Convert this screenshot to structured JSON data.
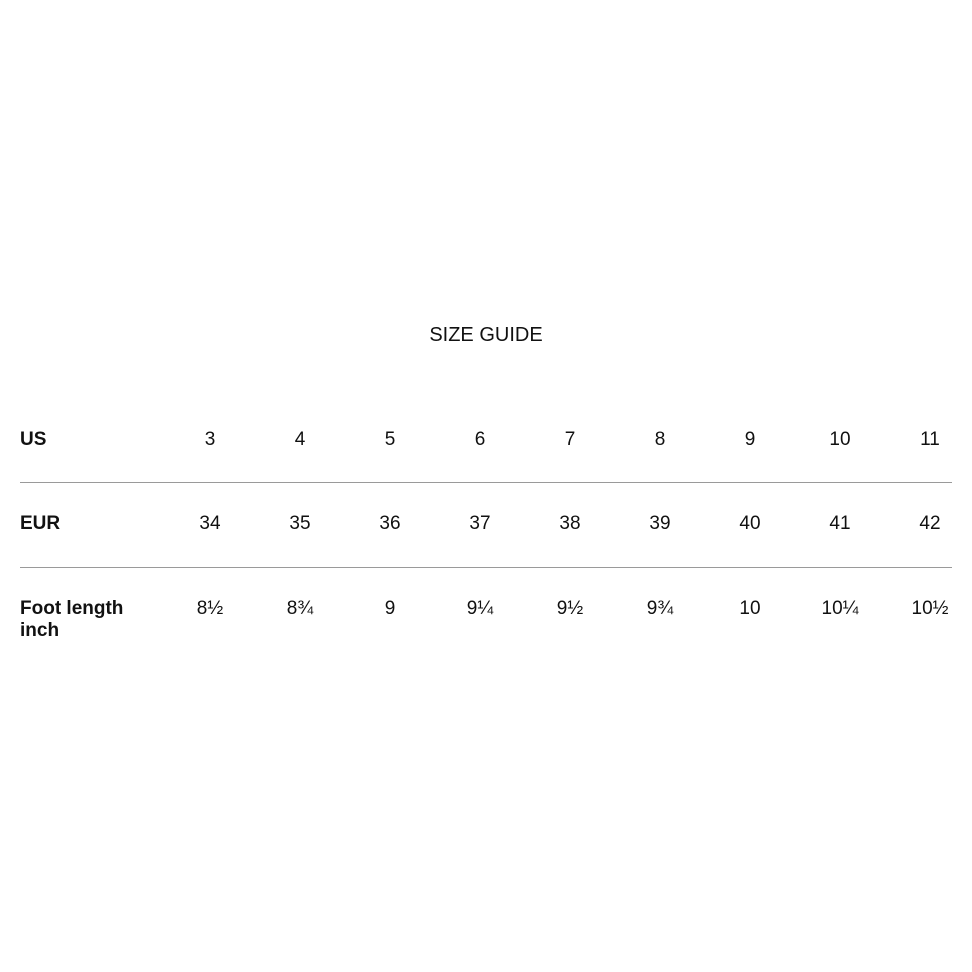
{
  "title": "SIZE GUIDE",
  "rows": [
    {
      "label": "US",
      "values": [
        "3",
        "4",
        "5",
        "6",
        "7",
        "8",
        "9",
        "10",
        "11"
      ]
    },
    {
      "label": "EUR",
      "values": [
        "34",
        "35",
        "36",
        "37",
        "38",
        "39",
        "40",
        "41",
        "42"
      ]
    },
    {
      "label": "Foot length",
      "sublabel": "inch",
      "values": [
        "8½",
        "8¾",
        "9",
        "9¼",
        "9½",
        "9¾",
        "10",
        "10¼",
        "10½"
      ]
    }
  ]
}
